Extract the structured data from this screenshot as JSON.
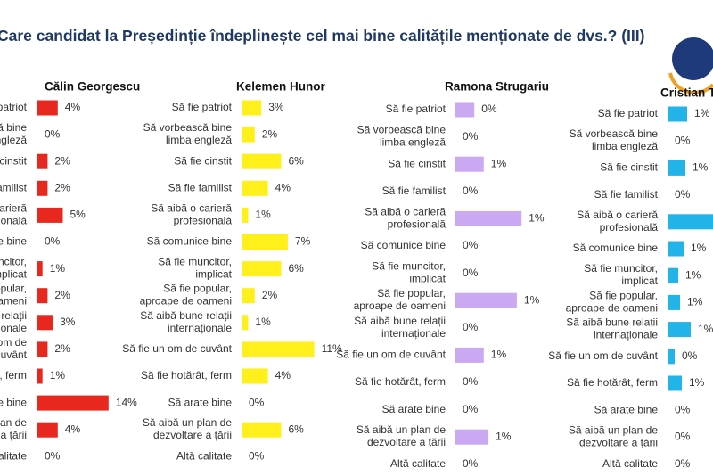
{
  "title": "Care candidat la Președinție îndeplinește cel mai bine calitățile menționate de dvs.? (III)",
  "chart_data": [
    {
      "type": "bar",
      "orientation": "horizontal",
      "title": "Călin Georgescu",
      "categories": [
        "Să fie patriot",
        "Să vorbească bine\nlimba engleză",
        "Să fie cinstit",
        "Să fie familist",
        "Să aibă o carieră\nprofesională",
        "Să comunice bine",
        "Să fie muncitor,\nimplicat",
        "Să fie popular,\naproape de oameni",
        "Să aibă bune relații\ninternaționale",
        "Să fie un om de\ncuvânt",
        "Să fie hotărât, ferm",
        "Să arate bine",
        "Să aibă un plan de\ndezvoltare a țării",
        "Altă calitate"
      ],
      "values": [
        4,
        0,
        2,
        2,
        5,
        0,
        1,
        2,
        3,
        2,
        1,
        14,
        4,
        0
      ],
      "value_labels": [
        "4%",
        "0%",
        "2%",
        "2%",
        "5%",
        "0%",
        "1%",
        "2%",
        "3%",
        "2%",
        "1%",
        "14%",
        "4%",
        "0%"
      ],
      "color": "#e8281e",
      "xlim": [
        0,
        20
      ]
    },
    {
      "type": "bar",
      "orientation": "horizontal",
      "title": "Kelemen Hunor",
      "categories": [
        "Să fie patriot",
        "Să vorbească bine\nlimba engleză",
        "Să fie cinstit",
        "Să fie familist",
        "Să aibă o carieră\nprofesională",
        "Să comunice bine",
        "Să fie muncitor,\nimplicat",
        "Să fie popular,\naproape de oameni",
        "Să aibă bune relații\ninternaționale",
        "Să fie un om de cuvânt",
        "Să fie hotărât, ferm",
        "Să arate bine",
        "Să aibă un plan de\ndezvoltare a țării",
        "Altă calitate"
      ],
      "values": [
        3,
        2,
        6,
        4,
        1,
        7,
        6,
        2,
        1,
        11,
        4,
        0,
        6,
        0
      ],
      "value_labels": [
        "3%",
        "2%",
        "6%",
        "4%",
        "1%",
        "7%",
        "6%",
        "2%",
        "1%",
        "11%",
        "4%",
        "0%",
        "6%",
        "0%"
      ],
      "color": "#fff01c",
      "xlim": [
        0,
        12
      ]
    },
    {
      "type": "bar",
      "orientation": "horizontal",
      "title": "Ramona Strugariu",
      "categories": [
        "Să fie patriot",
        "Să vorbească bine\nlimba engleză",
        "Să fie cinstit",
        "Să fie familist",
        "Să aibă o carieră\nprofesională",
        "Să comunice bine",
        "Să fie muncitor,\nimplicat",
        "Să fie popular,\naproape de oameni",
        "Să aibă bune relații\ninternaționale",
        "Să fie un om de cuvânt",
        "Să fie hotărât, ferm",
        "Să arate bine",
        "Să aibă un plan de\ndezvoltare a țării",
        "Altă calitate"
      ],
      "values": [
        0.4,
        0,
        0.6,
        0,
        1.4,
        0,
        0,
        1.3,
        0,
        0.6,
        0,
        0,
        0.7,
        0
      ],
      "value_labels": [
        "0%",
        "0%",
        "1%",
        "0%",
        "1%",
        "0%",
        "0%",
        "1%",
        "0%",
        "1%",
        "0%",
        "0%",
        "1%",
        "0%"
      ],
      "color": "#cba9f2",
      "xlim": [
        0,
        2
      ]
    },
    {
      "type": "bar",
      "orientation": "horizontal",
      "title": "Cristian Terheș",
      "categories": [
        "Să fie patriot",
        "Să vorbească bine\nlimba engleză",
        "Să fie cinstit",
        "Să fie familist",
        "Să aibă o carieră\nprofesională",
        "Să comunice bine",
        "Să fie muncitor,\nimplicat",
        "Să fie popular,\naproape de oameni",
        "Să aibă bune relații\ninternaționale",
        "Să fie un om de cuvânt",
        "Să fie hotărât, ferm",
        "Să arate bine",
        "Să aibă un plan de\ndezvoltare a țării",
        "Altă calitate"
      ],
      "values": [
        1.1,
        0,
        1.0,
        0,
        3,
        0.9,
        0.6,
        0.7,
        1.3,
        0.4,
        0.8,
        0,
        0,
        0
      ],
      "value_labels": [
        "1%",
        "0%",
        "1%",
        "0%",
        null,
        "1%",
        "1%",
        "1%",
        "1%",
        "0%",
        "1%",
        "0%",
        "0%",
        "0%"
      ],
      "color": "#22b4e8",
      "xlim": [
        0,
        3
      ]
    }
  ]
}
